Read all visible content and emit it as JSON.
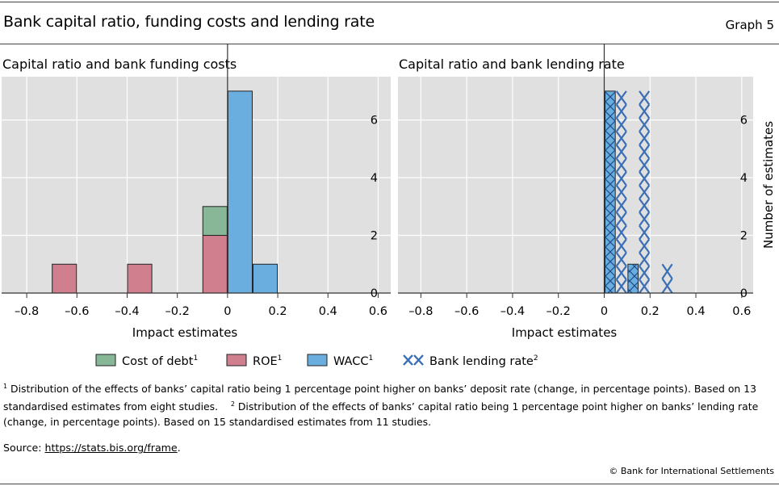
{
  "header": {
    "title": "Bank capital ratio, funding costs and lending rate",
    "graph_label": "Graph 5"
  },
  "colors": {
    "plot_bg": "#e0e0e0",
    "cost_of_debt": "#88b797",
    "roe": "#cf7f8e",
    "wacc": "#6aaee0",
    "bank_lending_rate": "#3a6fb5"
  },
  "legend": {
    "items": [
      {
        "key": "cost_of_debt",
        "label": "Cost of debt",
        "sup": "1",
        "style": "box"
      },
      {
        "key": "roe",
        "label": "ROE",
        "sup": "1",
        "style": "box"
      },
      {
        "key": "wacc",
        "label": "WACC",
        "sup": "1",
        "style": "box"
      },
      {
        "key": "bank_lending_rate",
        "label": "Bank lending rate",
        "sup": "2",
        "style": "cross"
      }
    ]
  },
  "chart_data": [
    {
      "type": "bar",
      "stacked": true,
      "title": "Capital ratio and bank funding costs",
      "xlabel": "Impact estimates",
      "ylabel": "",
      "xlim": [
        -0.9,
        0.65
      ],
      "ylim": [
        0,
        7.5
      ],
      "xticks": [
        -0.8,
        -0.6,
        -0.4,
        -0.2,
        0,
        0.2,
        0.4,
        0.6
      ],
      "xtick_labels": [
        "–0.8",
        "–0.6",
        "–0.4",
        "–0.2",
        "0",
        "0.2",
        "0.4",
        "0.6"
      ],
      "yticks": [
        0,
        2,
        4,
        6
      ],
      "grid": true,
      "bin_width": 0.1,
      "series": [
        {
          "name": "ROE",
          "key": "roe",
          "bins": [
            {
              "start": -0.7,
              "count": 1
            },
            {
              "start": -0.4,
              "count": 1
            },
            {
              "start": -0.1,
              "count": 2
            }
          ]
        },
        {
          "name": "Cost of debt",
          "key": "cost_of_debt",
          "bins": [
            {
              "start": -0.1,
              "count": 1
            }
          ]
        },
        {
          "name": "WACC",
          "key": "wacc",
          "bins": [
            {
              "start": 0.0,
              "count": 7
            },
            {
              "start": 0.1,
              "count": 1
            }
          ]
        }
      ]
    },
    {
      "type": "bar",
      "title": "Capital ratio and bank lending rate",
      "xlabel": "Impact estimates",
      "ylabel": "Number of estimates",
      "xlim": [
        -0.9,
        0.65
      ],
      "ylim": [
        0,
        7.5
      ],
      "xticks": [
        -0.8,
        -0.6,
        -0.4,
        -0.2,
        0,
        0.2,
        0.4,
        0.6
      ],
      "xtick_labels": [
        "–0.8",
        "–0.6",
        "–0.4",
        "–0.2",
        "0",
        "0.2",
        "0.4",
        "0.6"
      ],
      "yticks": [
        0,
        2,
        4,
        6
      ],
      "grid": true,
      "bin_width": 0.1,
      "series": [
        {
          "name": "WACC",
          "key": "wacc",
          "bins": [
            {
              "start": 0.0,
              "count": 7
            },
            {
              "start": 0.1,
              "count": 1
            }
          ]
        },
        {
          "name": "Bank lending rate",
          "key": "bank_lending_rate",
          "style": "cross",
          "bins": [
            {
              "start": 0.0,
              "count": 7
            },
            {
              "start": 0.1,
              "count": 7
            },
            {
              "start": 0.2,
              "count": 1
            }
          ]
        }
      ]
    }
  ],
  "footnotes": {
    "n1_mark": "1",
    "n1": "Distribution of the effects of banks’ capital ratio being 1 percentage point higher on banks’ deposit rate (change, in percentage points). Based on 13 standardised estimates from eight studies.",
    "n2_mark": "2",
    "n2": "Distribution of the effects of banks’ capital ratio being 1 percentage point higher on banks’ lending rate (change, in percentage points). Based on 15 standardised estimates from 11 studies."
  },
  "source": {
    "prefix": "Source: ",
    "link": "https://stats.bis.org/frame",
    "suffix": "."
  },
  "copyright": "© Bank for International Settlements"
}
